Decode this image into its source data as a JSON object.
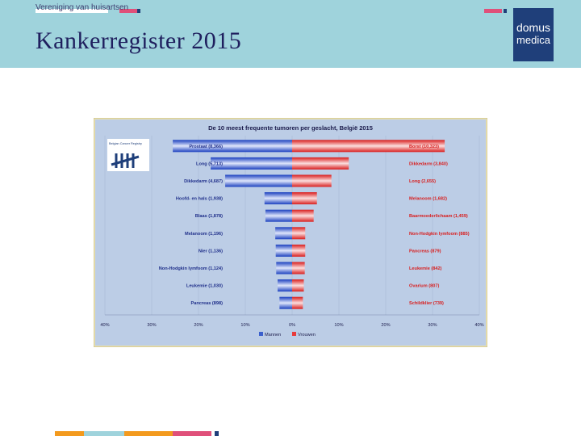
{
  "header": {
    "organization": "Vereniging van huisartsen",
    "title": "Kankerregister 2015",
    "logo_line1": "domus",
    "logo_line2": "medica"
  },
  "colors": {
    "header_bg": "#9fd3dc",
    "brand_navy": "#1f3f7a",
    "accent_pink": "#e0507a",
    "accent_orange": "#f39a1e",
    "accent_teal": "#7cc3cf",
    "chart_bg": "#bccde6",
    "chart_frame": "#e8e0b0",
    "male_color": "#3a5fcd",
    "female_color": "#e83a3a"
  },
  "chart_data": {
    "type": "bar",
    "orientation": "horizontal-population-pyramid",
    "title": "De 10 meest frequente tumoren per geslacht, België 2015",
    "source_label": "Belgian Cancer Registry",
    "xlim": [
      -40,
      40
    ],
    "x_unit": "%",
    "x_ticks": [
      "40%",
      "30%",
      "20%",
      "10%",
      "0%",
      "10%",
      "20%",
      "30%",
      "40%"
    ],
    "grid": true,
    "legend_position": "bottom",
    "series": [
      {
        "name": "Mannen",
        "side": "left",
        "labels": [
          "Prostaat (8,366)",
          "Long (5,713)",
          "Dikkedarm (4,687)",
          "Hoofd- en hals (1,938)",
          "Blaas (1,878)",
          "Melanoom (1,196)",
          "Nier (1,136)",
          "Non-Hodgkin lymfoom (1,124)",
          "Leukemie (1,030)",
          "Pancreas (898)"
        ],
        "values": [
          25.5,
          17.4,
          14.3,
          5.9,
          5.7,
          3.6,
          3.5,
          3.4,
          3.1,
          2.7
        ]
      },
      {
        "name": "Vrouwen",
        "side": "right",
        "labels": [
          "Borst (10,323)",
          "Dikkedarm (3,840)",
          "Long (2,655)",
          "Melanoom (1,682)",
          "Baarmoederlichaam (1,459)",
          "Non-Hodgkin lymfoom (885)",
          "Pancreas (879)",
          "Leukemie (842)",
          "Ovarium (807)",
          "Schildklier (739)"
        ],
        "values": [
          32.6,
          12.1,
          8.4,
          5.3,
          4.6,
          2.8,
          2.8,
          2.7,
          2.5,
          2.3
        ]
      }
    ]
  }
}
